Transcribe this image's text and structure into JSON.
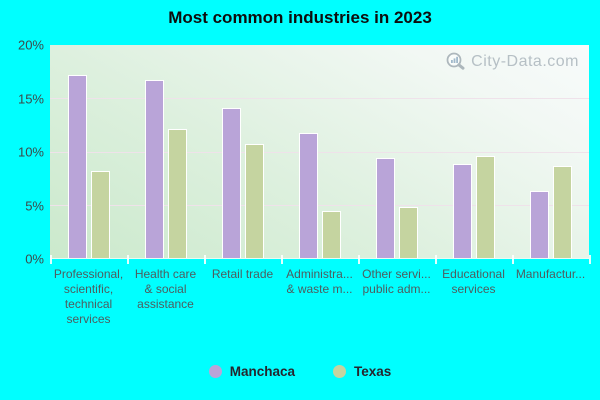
{
  "title": "Most common industries in 2023",
  "watermark": "City-Data.com",
  "colors": {
    "background": "#00ffff",
    "manchaca_bar": "#b9a4d8",
    "texas_bar": "#c5d4a0",
    "bar_border": "#ffffff",
    "gridline": "#efe2ea",
    "axis_text": "#4e5d5f",
    "title_text": "#0d0d0d",
    "watermark_text": "#b3bdc3"
  },
  "legend": [
    {
      "label": "Manchaca",
      "color": "#b9a4d8"
    },
    {
      "label": "Texas",
      "color": "#c5d4a0"
    }
  ],
  "chart_data": {
    "type": "bar",
    "title": "Most common industries in 2023",
    "categories": [
      "Professional, scientific, technical services",
      "Health care & social assistance",
      "Retail trade",
      "Administra... & waste m...",
      "Other servi... public adm...",
      "Educational services",
      "Manufactur..."
    ],
    "categories_display_lines": [
      [
        "Professional,",
        "scientific,",
        "technical",
        "services"
      ],
      [
        "Health care",
        "& social",
        "assistance"
      ],
      [
        "Retail trade"
      ],
      [
        "Administra...",
        "& waste m..."
      ],
      [
        "Other servi...",
        "public adm..."
      ],
      [
        "Educational",
        "services"
      ],
      [
        "Manufactur..."
      ]
    ],
    "series": [
      {
        "name": "Manchaca",
        "color": "#b9a4d8",
        "values": [
          17.2,
          16.7,
          14.1,
          11.7,
          9.4,
          8.8,
          6.3
        ]
      },
      {
        "name": "Texas",
        "color": "#c5d4a0",
        "values": [
          8.2,
          12.1,
          10.7,
          4.4,
          4.8,
          9.6,
          8.6
        ]
      }
    ],
    "xlabel": "",
    "ylabel": "",
    "ylim": [
      0,
      20
    ],
    "yticks": [
      "0%",
      "5%",
      "10%",
      "15%",
      "20%"
    ],
    "grid": true,
    "legend_position": "bottom"
  }
}
